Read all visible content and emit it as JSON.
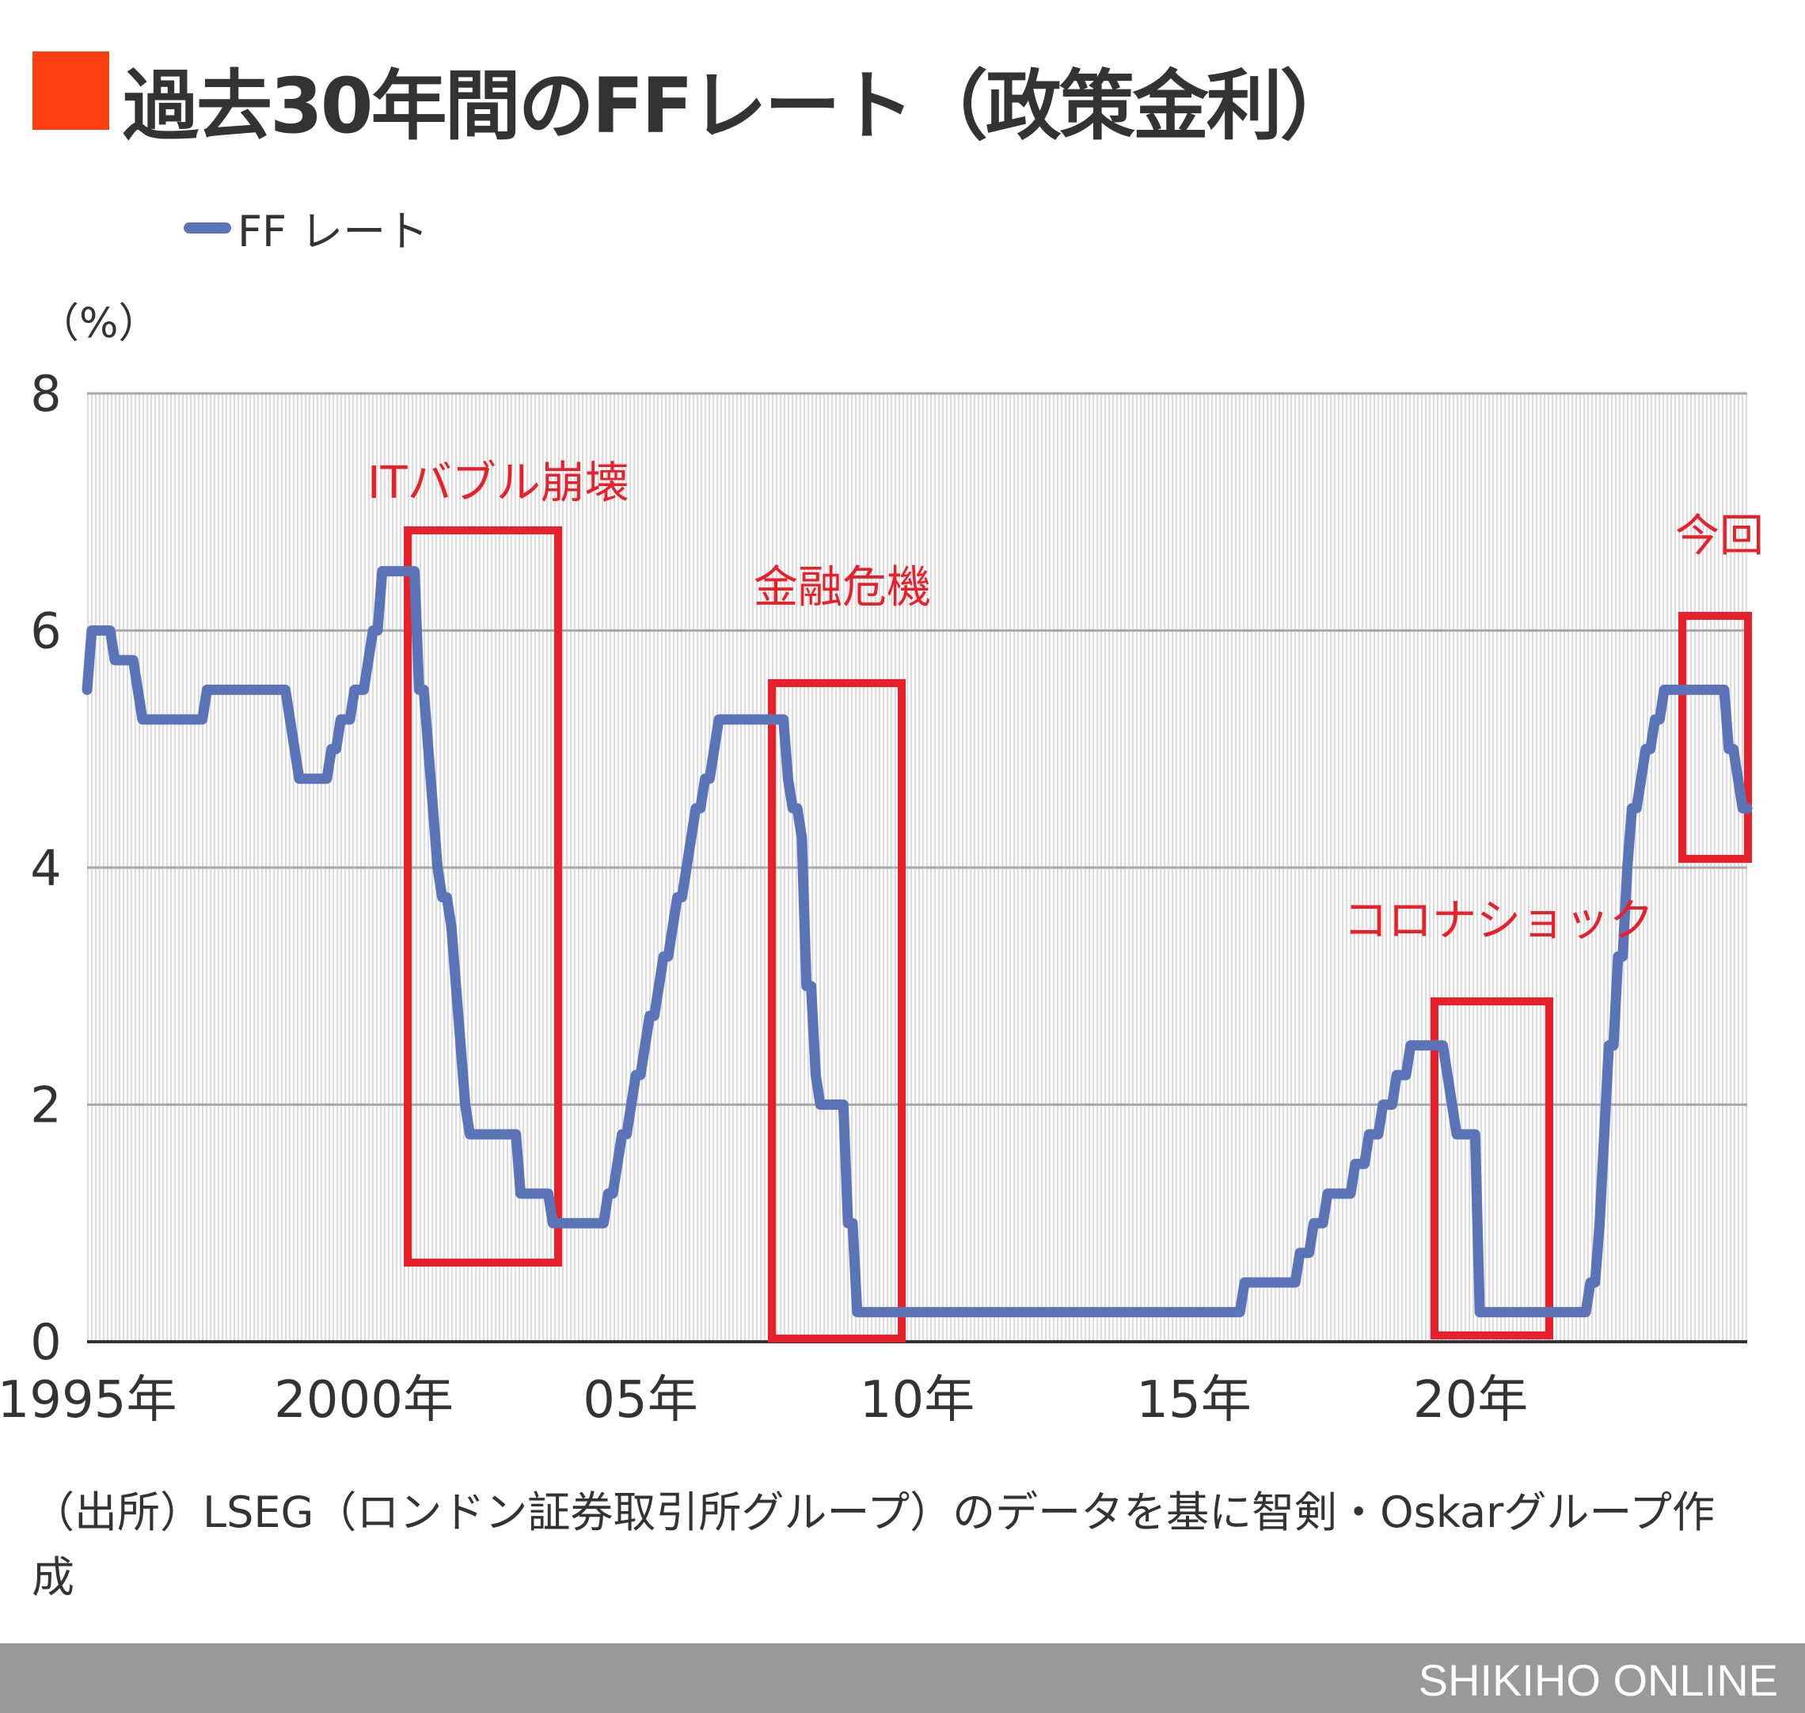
{
  "title": "過去30年間のFFレート（政策金利）",
  "colors": {
    "title_mark": "#ff3f12",
    "line": "#5b74b8",
    "annotation": "#e8202a",
    "footer": "#999999"
  },
  "source": "（出所）LSEG（ロンドン証券取引所グループ）のデータを基に智剣・Oskarグループ作成",
  "footer": "SHIKIHO ONLINE",
  "chart_data": {
    "type": "line",
    "title": "過去30年間のFFレート（政策金利）",
    "ylabel": "（%）",
    "xlabel": "",
    "ylim": [
      0,
      8
    ],
    "xlim": [
      "1995-01",
      "2025-01"
    ],
    "yticks": [
      "0",
      "2",
      "4",
      "6",
      "8"
    ],
    "xticks": [
      {
        "date": "1995-01",
        "label": "1995年"
      },
      {
        "date": "2000-01",
        "label": "2000年"
      },
      {
        "date": "2005-01",
        "label": "05年"
      },
      {
        "date": "2010-01",
        "label": "10年"
      },
      {
        "date": "2015-01",
        "label": "15年"
      },
      {
        "date": "2020-01",
        "label": "20年"
      }
    ],
    "grid": true,
    "legend": "top-left",
    "series": [
      {
        "name": "FF レート",
        "points": [
          [
            "1995-01",
            5.5
          ],
          [
            "1995-02",
            6.0
          ],
          [
            "1995-07",
            5.75
          ],
          [
            "1995-12",
            5.5
          ],
          [
            "1996-01",
            5.25
          ],
          [
            "1997-03",
            5.5
          ],
          [
            "1998-09",
            5.25
          ],
          [
            "1998-10",
            5.0
          ],
          [
            "1998-11",
            4.75
          ],
          [
            "1999-06",
            5.0
          ],
          [
            "1999-08",
            5.25
          ],
          [
            "1999-11",
            5.5
          ],
          [
            "2000-02",
            5.75
          ],
          [
            "2000-03",
            6.0
          ],
          [
            "2000-05",
            6.5
          ],
          [
            "2001-01",
            5.5
          ],
          [
            "2001-03",
            5.0
          ],
          [
            "2001-04",
            4.5
          ],
          [
            "2001-05",
            4.0
          ],
          [
            "2001-06",
            3.75
          ],
          [
            "2001-08",
            3.5
          ],
          [
            "2001-09",
            3.0
          ],
          [
            "2001-10",
            2.5
          ],
          [
            "2001-11",
            2.0
          ],
          [
            "2001-12",
            1.75
          ],
          [
            "2002-11",
            1.25
          ],
          [
            "2003-06",
            1.0
          ],
          [
            "2004-06",
            1.25
          ],
          [
            "2004-08",
            1.5
          ],
          [
            "2004-09",
            1.75
          ],
          [
            "2004-11",
            2.0
          ],
          [
            "2004-12",
            2.25
          ],
          [
            "2005-02",
            2.5
          ],
          [
            "2005-03",
            2.75
          ],
          [
            "2005-05",
            3.0
          ],
          [
            "2005-06",
            3.25
          ],
          [
            "2005-08",
            3.5
          ],
          [
            "2005-09",
            3.75
          ],
          [
            "2005-11",
            4.0
          ],
          [
            "2005-12",
            4.25
          ],
          [
            "2006-01",
            4.5
          ],
          [
            "2006-03",
            4.75
          ],
          [
            "2006-05",
            5.0
          ],
          [
            "2006-06",
            5.25
          ],
          [
            "2007-09",
            4.75
          ],
          [
            "2007-10",
            4.5
          ],
          [
            "2007-12",
            4.25
          ],
          [
            "2008-01",
            3.0
          ],
          [
            "2008-03",
            2.25
          ],
          [
            "2008-04",
            2.0
          ],
          [
            "2008-10",
            1.0
          ],
          [
            "2008-12",
            0.25
          ],
          [
            "2015-12",
            0.5
          ],
          [
            "2016-12",
            0.75
          ],
          [
            "2017-03",
            1.0
          ],
          [
            "2017-06",
            1.25
          ],
          [
            "2017-12",
            1.5
          ],
          [
            "2018-03",
            1.75
          ],
          [
            "2018-06",
            2.0
          ],
          [
            "2018-09",
            2.25
          ],
          [
            "2018-12",
            2.5
          ],
          [
            "2019-08",
            2.25
          ],
          [
            "2019-09",
            2.0
          ],
          [
            "2019-10",
            1.75
          ],
          [
            "2020-03",
            0.25
          ],
          [
            "2022-03",
            0.5
          ],
          [
            "2022-05",
            1.0
          ],
          [
            "2022-06",
            1.75
          ],
          [
            "2022-07",
            2.5
          ],
          [
            "2022-09",
            3.25
          ],
          [
            "2022-11",
            4.0
          ],
          [
            "2022-12",
            4.5
          ],
          [
            "2023-02",
            4.75
          ],
          [
            "2023-03",
            5.0
          ],
          [
            "2023-05",
            5.25
          ],
          [
            "2023-07",
            5.5
          ],
          [
            "2024-09",
            5.0
          ],
          [
            "2024-11",
            4.75
          ],
          [
            "2024-12",
            4.5
          ],
          [
            "2025-01",
            4.5
          ]
        ]
      }
    ],
    "annotations": [
      {
        "label": "ITバブル崩壊"
      },
      {
        "label": "金融危機"
      },
      {
        "label": "コロナショック"
      },
      {
        "label": "今回"
      }
    ]
  }
}
